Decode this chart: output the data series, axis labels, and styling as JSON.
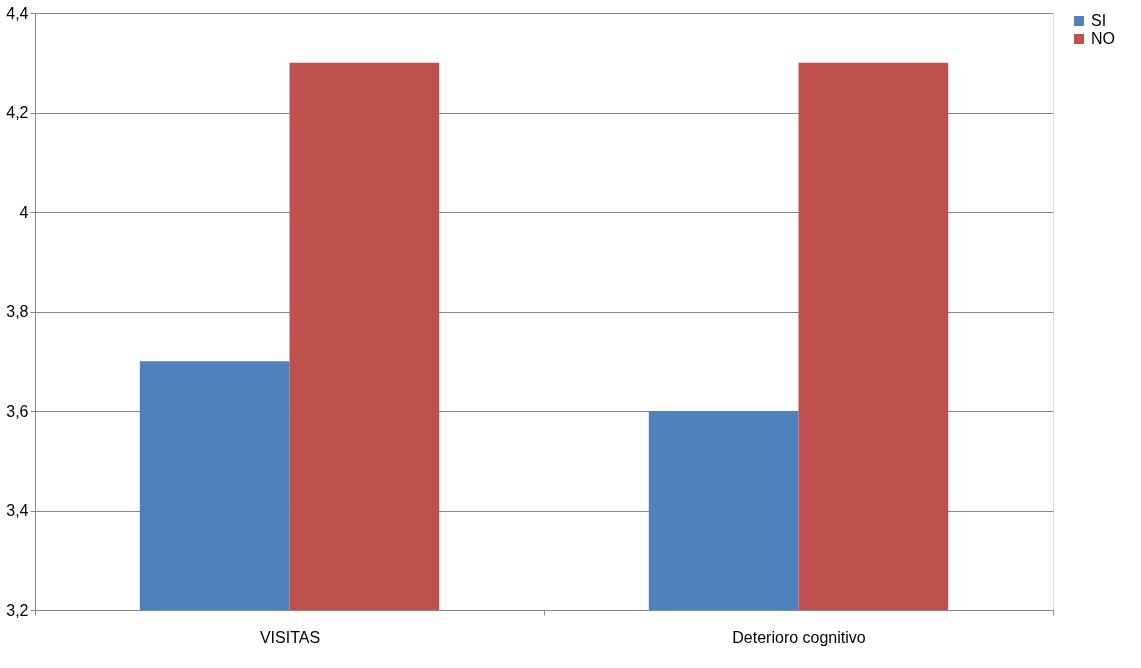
{
  "chart_data": {
    "type": "bar",
    "categories": [
      "VISITAS",
      "Deterioro cognitivo"
    ],
    "series": [
      {
        "name": "SI",
        "color": "#4f81bd",
        "values": [
          3.7,
          3.6
        ]
      },
      {
        "name": "NO",
        "color": "#c0504d",
        "values": [
          4.3,
          4.3
        ]
      }
    ],
    "ylim": [
      3.2,
      4.4
    ],
    "yticks": [
      {
        "value": 3.2,
        "label": "3,2"
      },
      {
        "value": 3.4,
        "label": "3,4"
      },
      {
        "value": 3.6,
        "label": "3,6"
      },
      {
        "value": 3.8,
        "label": "3,8"
      },
      4,
      {
        "value": 4.2,
        "label": "4,2"
      },
      {
        "value": 4.4,
        "label": "4,4"
      }
    ],
    "grid": "y",
    "legend": "right"
  }
}
